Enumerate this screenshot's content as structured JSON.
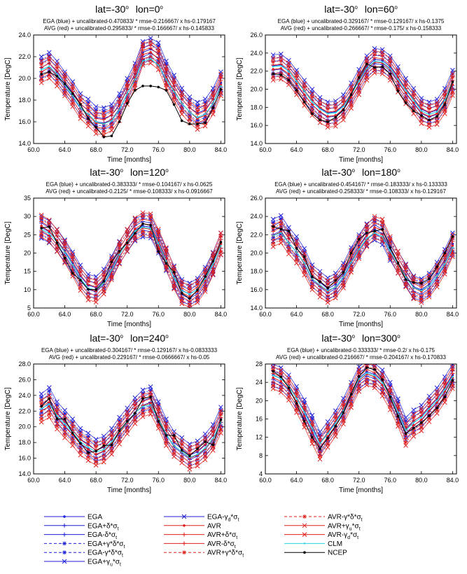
{
  "chart_data": {
    "type": "line",
    "x_ticks": [
      "60.0",
      "64.0",
      "68.0",
      "72.0",
      "76.0",
      "80.0",
      "84.0"
    ],
    "xlim": [
      60,
      84.5
    ],
    "xlabel": "Time [months]",
    "ylabel": "Temperature [DegC]",
    "panels": [
      {
        "lat": "lat=-30",
        "lon": "lon=0",
        "line1": "EGA (blue) + uncalibrated-0.470833/ * rmse-0.216667/ x hs-0.179167",
        "line2": "AVG (red) + uncalibrated-0.295833/ * rmse-0.166667/ x hs-0.145833",
        "ylim": [
          14,
          24
        ],
        "y_ticks": [
          "14.0",
          "16.0",
          "18.0",
          "20.0",
          "22.0",
          "24.0"
        ],
        "ega": [
          21.0,
          21.4,
          20.6,
          19.6,
          18.7,
          17.6,
          17.1,
          16.4,
          16.3,
          16.6,
          17.6,
          19.0,
          20.4,
          22.4,
          22.7,
          22.3,
          20.6,
          19.3,
          18.1,
          17.3,
          16.8,
          17.1,
          18.1,
          19.6
        ],
        "avr": [
          20.6,
          21.0,
          20.3,
          19.4,
          18.4,
          17.3,
          16.6,
          15.9,
          15.8,
          16.2,
          17.1,
          18.6,
          20.1,
          22.2,
          22.4,
          21.8,
          20.1,
          18.9,
          17.7,
          16.9,
          16.3,
          16.6,
          17.7,
          19.4
        ],
        "clm": [
          20.8,
          21.1,
          20.4,
          19.4,
          18.4,
          17.3,
          16.7,
          16.0,
          15.8,
          16.1,
          17.1,
          18.6,
          19.9,
          21.6,
          21.8,
          21.2,
          19.9,
          18.8,
          17.7,
          16.9,
          16.4,
          16.7,
          17.7,
          19.3
        ],
        "ncep": [
          20.4,
          20.6,
          20.2,
          19.5,
          18.6,
          17.6,
          16.3,
          15.5,
          14.6,
          14.7,
          16.0,
          17.7,
          18.9,
          19.3,
          19.3,
          19.2,
          18.9,
          17.6,
          16.1,
          15.8,
          15.8,
          15.9,
          17.3,
          19.0
        ]
      },
      {
        "lat": "lat=-30",
        "lon": "lon=60",
        "line1": "EGA (blue) + uncalibrated-0.329167/ * rmse-0.129167/ x hs-0.1375",
        "line2": "AVG (red) + uncalibrated-0.266667/ * rmse-0.175/ x hs-0.158333",
        "ylim": [
          14,
          26
        ],
        "y_ticks": [
          "14.0",
          "16.0",
          "18.0",
          "20.0",
          "22.0",
          "24.0",
          "26.0"
        ],
        "ega": [
          22.6,
          22.7,
          22.0,
          20.9,
          19.8,
          18.8,
          17.9,
          17.4,
          17.5,
          18.2,
          19.5,
          21.0,
          22.5,
          23.3,
          23.2,
          22.5,
          21.3,
          20.0,
          18.9,
          17.8,
          17.4,
          17.7,
          18.9,
          20.9
        ],
        "avr": [
          22.2,
          22.3,
          21.7,
          20.6,
          19.4,
          18.3,
          17.5,
          17.0,
          17.1,
          17.8,
          19.1,
          20.6,
          22.2,
          23.0,
          22.9,
          22.2,
          20.9,
          19.6,
          18.5,
          17.4,
          17.0,
          17.3,
          18.5,
          20.5
        ],
        "clm": [
          22.5,
          22.6,
          22.0,
          20.9,
          19.8,
          18.6,
          17.8,
          17.3,
          17.4,
          18.1,
          19.4,
          20.9,
          22.3,
          23.1,
          23.0,
          22.3,
          21.1,
          19.9,
          18.8,
          17.6,
          17.2,
          17.5,
          18.8,
          20.8
        ],
        "ncep": [
          21.7,
          21.6,
          21.0,
          19.9,
          18.6,
          17.3,
          16.6,
          16.4,
          16.9,
          17.7,
          19.4,
          21.3,
          22.8,
          22.4,
          22.5,
          21.7,
          19.8,
          18.5,
          17.6,
          17.1,
          16.6,
          17.0,
          18.3,
          20.8
        ]
      },
      {
        "lat": "lat=-30",
        "lon": "lon=120",
        "line1": "EGA (blue) + uncalibrated-0.383333/ * rmse-0.104167/ x hs-0.0625",
        "line2": "AVG (red) + uncalibrated-0.2125/ * rmse-0.108333/ x hs-0.0916667",
        "ylim": [
          5,
          35
        ],
        "y_ticks": [
          "5",
          "10",
          "15",
          "20",
          "25",
          "30",
          "35"
        ],
        "ega": [
          27.0,
          25.8,
          23.5,
          20.6,
          17.3,
          13.7,
          11.2,
          10.6,
          12.6,
          16.2,
          20.2,
          23.4,
          26.3,
          27.4,
          27.1,
          23.0,
          18.2,
          13.5,
          9.8,
          8.8,
          10.1,
          13.1,
          17.2,
          22.5
        ],
        "avr": [
          27.4,
          26.0,
          23.4,
          20.3,
          16.7,
          12.8,
          10.2,
          9.6,
          11.8,
          15.7,
          20.0,
          23.5,
          26.6,
          28.0,
          27.7,
          23.5,
          18.5,
          13.2,
          9.2,
          8.1,
          9.5,
          12.5,
          17.0,
          22.5
        ],
        "clm": [
          26.5,
          25.3,
          23.0,
          20.2,
          16.8,
          13.0,
          10.4,
          9.9,
          11.8,
          15.4,
          19.6,
          23.0,
          26.0,
          27.1,
          26.7,
          22.7,
          17.8,
          13.2,
          9.7,
          8.8,
          10.1,
          13.0,
          17.0,
          22.0
        ],
        "ncep": [
          26.8,
          27.2,
          22.8,
          18.6,
          14.5,
          12.6,
          10.1,
          10.0,
          12.3,
          17.6,
          20.5,
          22.8,
          25.4,
          28.0,
          27.6,
          20.4,
          17.2,
          14.8,
          9.0,
          7.6,
          9.9,
          13.6,
          17.8,
          23.0
        ]
      },
      {
        "lat": "lat=-30",
        "lon": "lon=180",
        "line1": "EGA (blue) + uncalibrated-0.454167/ * rmse-0.183333/ x hs-0.133333",
        "line2": "AVG (red) + uncalibrated-0.258333/ * rmse-0.108333/ x hs-0.129167",
        "ylim": [
          14,
          26
        ],
        "y_ticks": [
          "14.0",
          "16.0",
          "18.0",
          "20.0",
          "22.0",
          "24.0",
          "26.0"
        ],
        "ega": [
          22.5,
          22.9,
          21.6,
          20.6,
          19.3,
          17.5,
          16.8,
          16.1,
          16.6,
          17.7,
          19.4,
          20.8,
          22.0,
          22.6,
          22.1,
          20.4,
          19.0,
          17.6,
          16.3,
          16.0,
          16.6,
          17.8,
          19.2,
          21.0
        ],
        "avr": [
          21.9,
          22.3,
          21.1,
          20.1,
          18.8,
          17.2,
          16.4,
          15.8,
          16.3,
          17.4,
          19.1,
          20.6,
          21.9,
          22.8,
          22.5,
          20.6,
          19.0,
          17.5,
          16.2,
          15.8,
          16.4,
          17.5,
          18.9,
          20.8
        ],
        "clm": [
          21.9,
          22.2,
          21.1,
          20.1,
          18.9,
          17.2,
          16.5,
          15.9,
          16.3,
          17.4,
          19.0,
          20.4,
          21.6,
          22.2,
          21.8,
          20.2,
          18.8,
          17.4,
          16.2,
          15.9,
          16.4,
          17.5,
          18.8,
          20.6
        ],
        "ncep": [
          22.9,
          22.6,
          22.4,
          20.5,
          19.6,
          17.4,
          16.9,
          16.2,
          17.0,
          17.9,
          20.0,
          21.5,
          22.2,
          22.4,
          22.6,
          20.6,
          18.9,
          17.1,
          16.8,
          16.7,
          17.2,
          18.5,
          20.0,
          21.8
        ]
      },
      {
        "lat": "lat=-30",
        "lon": "lon=240",
        "line1": "EGA (blue) + uncalibrated-0.304167/ * rmse-0.129167/ x hs-0.0833333",
        "line2": "AVG (red) + uncalibrated-0.229167/ * rmse-0.0666667/ x hs-0.05",
        "ylim": [
          14,
          28
        ],
        "y_ticks": [
          "14.0",
          "16.0",
          "18.0",
          "20.0",
          "22.0",
          "24.0",
          "26.0",
          "28.0"
        ],
        "ega": [
          22.8,
          23.6,
          21.8,
          20.7,
          19.6,
          18.4,
          17.8,
          17.0,
          17.4,
          18.4,
          19.8,
          21.0,
          22.3,
          23.3,
          23.7,
          21.8,
          19.6,
          18.0,
          17.2,
          16.4,
          16.8,
          17.7,
          18.9,
          21.1
        ],
        "avr": [
          22.0,
          22.6,
          21.1,
          20.0,
          19.0,
          17.8,
          17.1,
          16.5,
          16.9,
          17.9,
          19.2,
          20.5,
          21.8,
          22.7,
          23.0,
          21.2,
          19.0,
          17.6,
          16.8,
          16.0,
          16.4,
          17.2,
          18.4,
          20.6
        ],
        "clm": [
          22.3,
          22.9,
          21.4,
          20.4,
          19.3,
          18.1,
          17.4,
          16.8,
          17.1,
          18.1,
          19.4,
          20.6,
          21.8,
          22.6,
          22.8,
          21.0,
          19.0,
          17.6,
          16.8,
          16.1,
          16.5,
          17.3,
          18.5,
          20.6
        ],
        "ncep": [
          22.6,
          23.6,
          21.0,
          21.0,
          19.2,
          17.9,
          16.7,
          16.9,
          17.6,
          17.7,
          19.5,
          20.7,
          21.7,
          23.6,
          23.8,
          20.7,
          18.9,
          18.9,
          17.0,
          16.3,
          17.2,
          18.1,
          17.7,
          20.9
        ]
      },
      {
        "lat": "lat=-30",
        "lon": "lon=300",
        "line1": "EGA (blue) + uncalibrated-0.333333/ * rmse-0.2/ x hs-0.175",
        "line2": "AVG (red) + uncalibrated-0.216667/ * rmse-0.204167/ x hs-0.170833",
        "ylim": [
          4,
          28
        ],
        "y_ticks": [
          "4",
          "8",
          "12",
          "16",
          "20",
          "24",
          "28"
        ],
        "ega": [
          25.6,
          24.8,
          23.2,
          20.7,
          17.8,
          14.4,
          10.8,
          13.0,
          15.4,
          18.1,
          21.6,
          25.0,
          26.3,
          25.8,
          24.3,
          21.6,
          18.0,
          13.9,
          15.6,
          16.6,
          18.6,
          20.4,
          22.8,
          25.6
        ],
        "avr": [
          25.0,
          24.2,
          22.5,
          19.8,
          16.6,
          13.0,
          9.6,
          12.2,
          14.6,
          17.3,
          20.9,
          24.4,
          25.8,
          25.2,
          23.4,
          20.4,
          16.8,
          12.6,
          14.6,
          15.8,
          17.8,
          19.6,
          22.0,
          25.0
        ],
        "clm": [
          25.5,
          24.8,
          23.1,
          20.5,
          17.5,
          14.0,
          10.6,
          12.8,
          15.1,
          17.8,
          21.3,
          24.7,
          26.0,
          25.5,
          23.9,
          21.1,
          17.5,
          13.5,
          15.2,
          16.3,
          18.2,
          20.0,
          22.4,
          25.2
        ],
        "ncep": [
          26.4,
          25.2,
          22.8,
          19.4,
          15.5,
          12.0,
          9.5,
          11.8,
          14.4,
          17.4,
          21.4,
          25.3,
          27.2,
          26.8,
          24.6,
          20.8,
          16.6,
          12.8,
          14.0,
          15.2,
          16.7,
          18.4,
          20.8,
          24.4
        ]
      }
    ],
    "legend": [
      {
        "label": "EGA",
        "color": "#1f1fd6",
        "dash": "solid",
        "marker": "dot"
      },
      {
        "label": "EGA+δ*σ",
        "sub": "t",
        "color": "#1f1fd6",
        "dash": "solid",
        "marker": "plus"
      },
      {
        "label": "EGA-δ*σ",
        "sub": "t",
        "color": "#1f1fd6",
        "dash": "solid",
        "marker": "plus"
      },
      {
        "label": "EGA+γ*δ*σ",
        "sub": "t",
        "color": "#1f1fd6",
        "dash": "dash",
        "marker": "star"
      },
      {
        "label": "EGA-γ*δ*σ",
        "sub": "t",
        "color": "#1f1fd6",
        "dash": "dash",
        "marker": "star"
      },
      {
        "label": "EGA+γ",
        "sub": "u",
        "label2": "*σ",
        "sub2": "t",
        "color": "#1f1fd6",
        "dash": "solid",
        "marker": "x"
      },
      {
        "label": "EGA-γ",
        "sub": "d",
        "label2": "*σ",
        "sub2": "t",
        "color": "#1f1fd6",
        "dash": "solid",
        "marker": "x"
      },
      {
        "label": "AVR",
        "color": "#e0201c",
        "dash": "solid",
        "marker": "dot"
      },
      {
        "label": "AVR+δ*σ",
        "sub": "t",
        "color": "#e0201c",
        "dash": "solid",
        "marker": "plus"
      },
      {
        "label": "AVR-δ*σ",
        "sub": "t",
        "color": "#e0201c",
        "dash": "solid",
        "marker": "plus"
      },
      {
        "label": "AVR+γ*δ*σ",
        "sub": "t",
        "color": "#e0201c",
        "dash": "dash",
        "marker": "star"
      },
      {
        "label": "AVR-γ*δ*σ",
        "sub": "t",
        "color": "#e0201c",
        "dash": "dash",
        "marker": "star"
      },
      {
        "label": "AVR+γ",
        "sub": "u",
        "label2": "*σ",
        "sub2": "t",
        "color": "#e0201c",
        "dash": "solid",
        "marker": "x"
      },
      {
        "label": "AVR-γ",
        "sub": "d",
        "label2": "*σ",
        "sub2": "t",
        "color": "#e0201c",
        "dash": "solid",
        "marker": "x"
      },
      {
        "label": "CLM",
        "color": "#22d3e6",
        "dash": "solid",
        "marker": "small"
      },
      {
        "label": "NCEP",
        "color": "#000000",
        "dash": "solid",
        "marker": "dot"
      }
    ],
    "colors": {
      "ega": "#1f1fd6",
      "avr": "#e0201c",
      "clm": "#22d3e6",
      "ncep": "#000000"
    }
  }
}
